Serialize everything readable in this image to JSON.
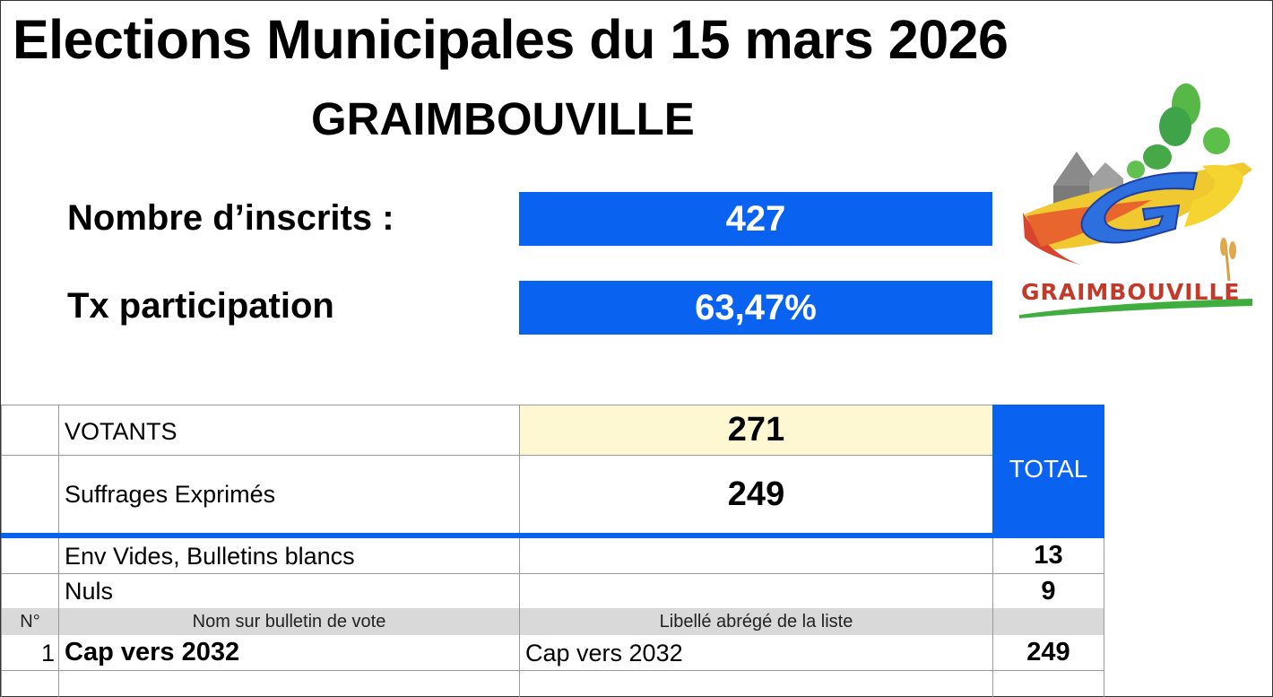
{
  "title": "Elections Municipales du 15 mars 2026",
  "commune": "GRAIMBOUVILLE",
  "stats": {
    "inscrits_label": "Nombre d’inscrits :",
    "inscrits_value": "427",
    "participation_label": "Tx participation",
    "participation_value": "63,47%"
  },
  "logo": {
    "text": "GRAIMBOUVILLE",
    "icon": "village-logo"
  },
  "colors": {
    "accent_blue": "#0a63f0",
    "votants_bg": "#fdf7d2",
    "header_gray": "#d9d9d9"
  },
  "summary": {
    "votants_label": "VOTANTS",
    "votants_value": "271",
    "suffrages_label": "Suffrages Exprimés",
    "suffrages_value": "249",
    "total_label": "TOTAL",
    "blancs_label": "Env Vides, Bulletins blancs",
    "blancs_value": "13",
    "nuls_label": "Nuls",
    "nuls_value": "9"
  },
  "table": {
    "headers": {
      "num": "N°",
      "nom": "Nom sur bulletin de vote",
      "libelle": "Libellé abrégé de la liste"
    },
    "rows": [
      {
        "num": "1",
        "nom": "Cap vers 2032",
        "libelle": "Cap vers 2032",
        "voix": "249"
      }
    ]
  }
}
